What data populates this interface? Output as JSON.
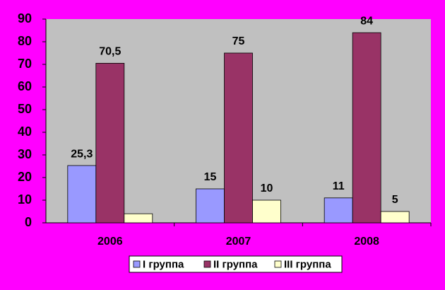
{
  "chart_data": {
    "type": "bar",
    "categories": [
      "2006",
      "2007",
      "2008"
    ],
    "series": [
      {
        "name": "I группа",
        "color": "#9999ff",
        "values": [
          25.3,
          15,
          11
        ],
        "value_labels": [
          "25,3",
          "15",
          "11"
        ]
      },
      {
        "name": "II группа",
        "color": "#993366",
        "values": [
          70.5,
          75,
          84
        ],
        "value_labels": [
          "70,5",
          "75",
          "84"
        ]
      },
      {
        "name": "III группа",
        "color": "#ffffcc",
        "values": [
          4,
          10,
          5
        ],
        "value_labels": [
          null,
          "10",
          "5"
        ]
      }
    ],
    "ylim": [
      0,
      90
    ],
    "yticks": [
      0,
      10,
      20,
      30,
      40,
      50,
      60,
      70,
      80,
      90
    ],
    "legend": "bottom"
  }
}
